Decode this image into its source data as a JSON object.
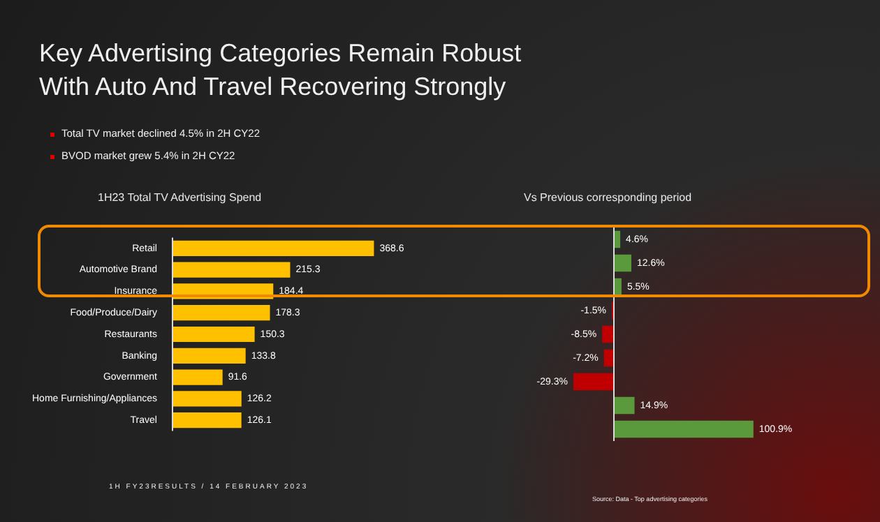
{
  "chart_data": [
    {
      "type": "bar",
      "orientation": "horizontal",
      "title": "1H23 Total TV Advertising Spend",
      "categories": [
        "Retail",
        "Automotive Brand",
        "Insurance",
        "Food/Produce/Dairy",
        "Restaurants",
        "Banking",
        "Government",
        "Home Furnishing/Appliances",
        "Travel"
      ],
      "values": [
        368.6,
        215.3,
        184.4,
        178.3,
        150.3,
        133.8,
        91.6,
        126.2,
        126.1
      ],
      "color": "#ffc000",
      "data_labels": true,
      "tick_labels": "y",
      "legend": false,
      "annotations": [
        "Key Advertising Categories Remain Robust\nWith Auto And Travel Recovering Strongly",
        "Total TV market declined 4.5% in 2H CY22",
        "BVOD market grew 5.4% in 2H CY22"
      ]
    },
    {
      "type": "bar",
      "orientation": "horizontal",
      "title": "Vs Previous corresponding period",
      "categories": [
        null,
        null,
        null,
        null,
        null,
        null,
        null,
        null,
        null
      ],
      "values": [
        4.6,
        12.6,
        5.5,
        -1.5,
        -8.5,
        -7.2,
        -29.3,
        14.9,
        100.9
      ],
      "colors": [
        "#5a9a3c",
        "#5a9a3c",
        "#5a9a3c",
        "#c00000",
        "#c00000",
        "#c00000",
        "#c00000",
        "#5a9a3c",
        "#5a9a3c"
      ],
      "value_labels": [
        "4.6%",
        "12.6%",
        "5.5%",
        "-1.5%",
        "-8.5%",
        "-7.2%",
        "-29.3%",
        "14.9%",
        "100.9%"
      ],
      "tick_labels": false,
      "legend": false,
      "annotations": [
        "1H FY23RESULTS / 14 FEBRUARY 2023",
        "Source: Data - Top advertising categories"
      ]
    }
  ]
}
